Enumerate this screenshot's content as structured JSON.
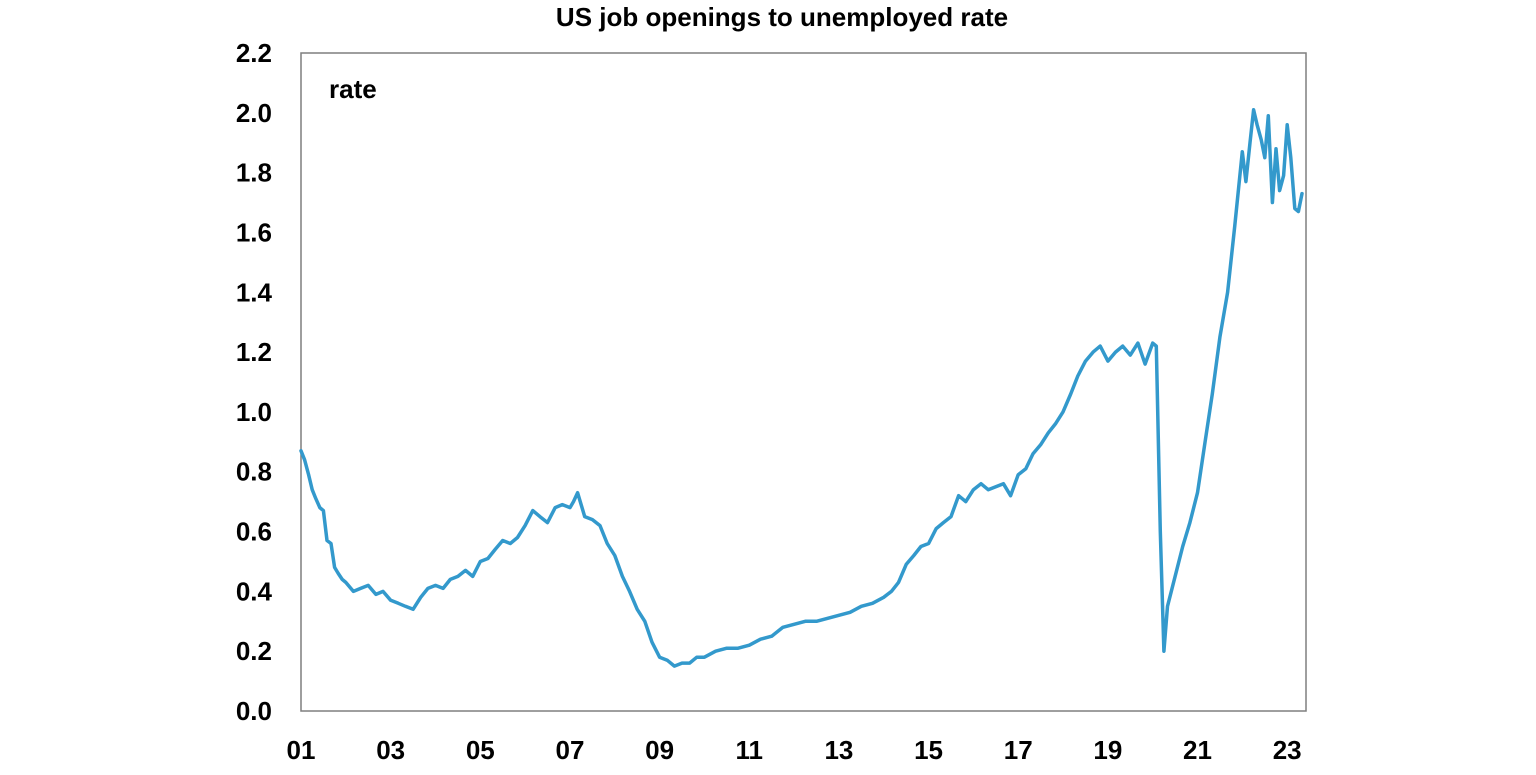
{
  "chart_data": {
    "type": "line",
    "title": "US job openings to unemployed rate",
    "ylabel": "rate",
    "xlabel": "",
    "xlim": [
      2001.0,
      2023.42
    ],
    "ylim": [
      0.0,
      2.2
    ],
    "y_ticks": [
      "0.0",
      "0.2",
      "0.4",
      "0.6",
      "0.8",
      "1.0",
      "1.2",
      "1.4",
      "1.6",
      "1.8",
      "2.0",
      "2.2"
    ],
    "x_ticks": [
      {
        "label": "01",
        "value": 2001
      },
      {
        "label": "03",
        "value": 2003
      },
      {
        "label": "05",
        "value": 2005
      },
      {
        "label": "07",
        "value": 2007
      },
      {
        "label": "09",
        "value": 2009
      },
      {
        "label": "11",
        "value": 2011
      },
      {
        "label": "13",
        "value": 2013
      },
      {
        "label": "15",
        "value": 2015
      },
      {
        "label": "17",
        "value": 2017
      },
      {
        "label": "19",
        "value": 2019
      },
      {
        "label": "21",
        "value": 2021
      },
      {
        "label": "23",
        "value": 2023
      }
    ],
    "grid": false,
    "legend": "none",
    "series": [
      {
        "color": "#3399cc",
        "x": [
          2001.0,
          2001.08,
          2001.17,
          2001.25,
          2001.33,
          2001.42,
          2001.5,
          2001.58,
          2001.67,
          2001.75,
          2001.83,
          2001.92,
          2002.0,
          2002.17,
          2002.33,
          2002.5,
          2002.67,
          2002.83,
          2003.0,
          2003.17,
          2003.33,
          2003.5,
          2003.67,
          2003.83,
          2004.0,
          2004.17,
          2004.33,
          2004.5,
          2004.67,
          2004.83,
          2005.0,
          2005.17,
          2005.33,
          2005.5,
          2005.67,
          2005.83,
          2006.0,
          2006.17,
          2006.33,
          2006.5,
          2006.67,
          2006.83,
          2007.0,
          2007.08,
          2007.17,
          2007.33,
          2007.5,
          2007.67,
          2007.83,
          2008.0,
          2008.17,
          2008.33,
          2008.5,
          2008.67,
          2008.83,
          2009.0,
          2009.17,
          2009.33,
          2009.5,
          2009.67,
          2009.83,
          2010.0,
          2010.25,
          2010.5,
          2010.75,
          2011.0,
          2011.25,
          2011.5,
          2011.75,
          2012.0,
          2012.25,
          2012.5,
          2012.75,
          2013.0,
          2013.25,
          2013.5,
          2013.75,
          2014.0,
          2014.17,
          2014.33,
          2014.5,
          2014.67,
          2014.83,
          2015.0,
          2015.17,
          2015.33,
          2015.5,
          2015.67,
          2015.83,
          2016.0,
          2016.17,
          2016.33,
          2016.5,
          2016.67,
          2016.83,
          2017.0,
          2017.17,
          2017.33,
          2017.5,
          2017.67,
          2017.83,
          2018.0,
          2018.17,
          2018.33,
          2018.5,
          2018.67,
          2018.83,
          2019.0,
          2019.17,
          2019.33,
          2019.5,
          2019.67,
          2019.83,
          2020.0,
          2020.08,
          2020.17,
          2020.25,
          2020.33,
          2020.5,
          2020.67,
          2020.83,
          2021.0,
          2021.17,
          2021.33,
          2021.5,
          2021.67,
          2021.83,
          2022.0,
          2022.08,
          2022.17,
          2022.25,
          2022.33,
          2022.42,
          2022.5,
          2022.58,
          2022.67,
          2022.75,
          2022.83,
          2022.92,
          2023.0,
          2023.08,
          2023.17,
          2023.25,
          2023.33
        ],
        "y": [
          0.87,
          0.84,
          0.79,
          0.74,
          0.71,
          0.68,
          0.67,
          0.57,
          0.56,
          0.48,
          0.46,
          0.44,
          0.43,
          0.4,
          0.41,
          0.42,
          0.39,
          0.4,
          0.37,
          0.36,
          0.35,
          0.34,
          0.38,
          0.41,
          0.42,
          0.41,
          0.44,
          0.45,
          0.47,
          0.45,
          0.5,
          0.51,
          0.54,
          0.57,
          0.56,
          0.58,
          0.62,
          0.67,
          0.65,
          0.63,
          0.68,
          0.69,
          0.68,
          0.7,
          0.73,
          0.65,
          0.64,
          0.62,
          0.56,
          0.52,
          0.45,
          0.4,
          0.34,
          0.3,
          0.23,
          0.18,
          0.17,
          0.15,
          0.16,
          0.16,
          0.18,
          0.18,
          0.2,
          0.21,
          0.21,
          0.22,
          0.24,
          0.25,
          0.28,
          0.29,
          0.3,
          0.3,
          0.31,
          0.32,
          0.33,
          0.35,
          0.36,
          0.38,
          0.4,
          0.43,
          0.49,
          0.52,
          0.55,
          0.56,
          0.61,
          0.63,
          0.65,
          0.72,
          0.7,
          0.74,
          0.76,
          0.74,
          0.75,
          0.76,
          0.72,
          0.79,
          0.81,
          0.86,
          0.89,
          0.93,
          0.96,
          1.0,
          1.06,
          1.12,
          1.17,
          1.2,
          1.22,
          1.17,
          1.2,
          1.22,
          1.19,
          1.23,
          1.16,
          1.23,
          1.22,
          0.6,
          0.2,
          0.35,
          0.45,
          0.55,
          0.63,
          0.73,
          0.9,
          1.06,
          1.25,
          1.4,
          1.62,
          1.87,
          1.77,
          1.9,
          2.01,
          1.96,
          1.91,
          1.85,
          1.99,
          1.7,
          1.88,
          1.74,
          1.79,
          1.96,
          1.85,
          1.68,
          1.67,
          1.73
        ]
      }
    ]
  }
}
